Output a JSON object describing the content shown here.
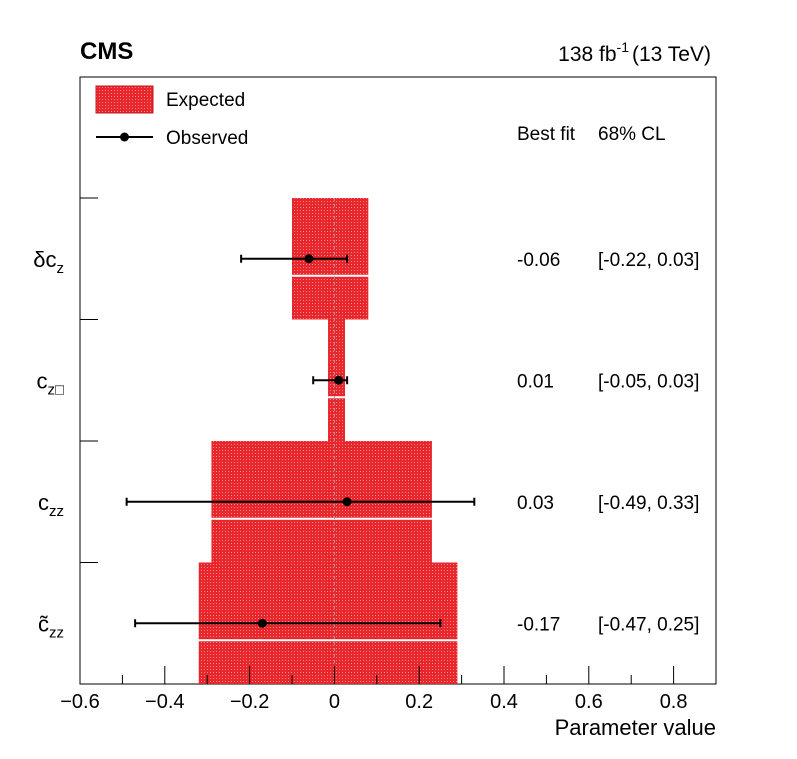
{
  "header": {
    "experiment": "CMS",
    "lumi_value": "138 fb",
    "lumi_exp": "-1",
    "energy": "(13 TeV)"
  },
  "legend": {
    "expected_label": "Expected",
    "observed_label": "Observed"
  },
  "columns": {
    "best_fit": "Best fit",
    "cl": "68% CL"
  },
  "colors": {
    "expected_fill": "#e8262b",
    "observed": "#000000",
    "zero_line": "#9a9a9a"
  },
  "chart_data": {
    "type": "scatter",
    "title": "",
    "xlabel": "Parameter value",
    "xlim": [
      -0.6,
      0.9
    ],
    "x_ticks": [
      -0.6,
      -0.4,
      -0.2,
      0,
      0.2,
      0.4,
      0.6,
      0.8
    ],
    "x_tick_labels": [
      "−0.6",
      "−0.4",
      "−0.2",
      "0",
      "0.2",
      "0.4",
      "0.6",
      "0.8"
    ],
    "parameters": [
      {
        "main": "δc",
        "sub": "z",
        "best_fit_label": "-0.06",
        "cl_label": "[-0.22, 0.03]",
        "observed": -0.06,
        "observed_lo": -0.22,
        "observed_hi": 0.03,
        "expected_lo": -0.1,
        "expected_hi": 0.08
      },
      {
        "main": "c",
        "sub": "z□",
        "best_fit_label": "0.01",
        "cl_label": "[-0.05, 0.03]",
        "observed": 0.01,
        "observed_lo": -0.05,
        "observed_hi": 0.03,
        "expected_lo": -0.015,
        "expected_hi": 0.025
      },
      {
        "main": "c",
        "sub": "zz",
        "best_fit_label": "0.03",
        "cl_label": "[-0.49, 0.33]",
        "observed": 0.03,
        "observed_lo": -0.49,
        "observed_hi": 0.33,
        "expected_lo": -0.29,
        "expected_hi": 0.23
      },
      {
        "main": "c̃",
        "sub": "zz",
        "best_fit_label": "-0.17",
        "cl_label": "[-0.47, 0.25]",
        "observed": -0.17,
        "observed_lo": -0.47,
        "observed_hi": 0.25,
        "expected_lo": -0.32,
        "expected_hi": 0.29
      }
    ]
  }
}
